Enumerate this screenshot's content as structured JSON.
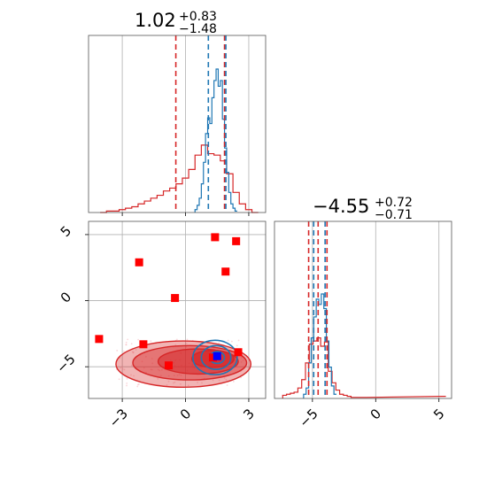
{
  "chart_data": [
    {
      "type": "histogram",
      "panel": "top-left marginal (parameter 1)",
      "title": {
        "value": "1.02",
        "upper": "+0.83",
        "lower": "−1.48"
      },
      "x_range": [
        -4.6,
        3.8
      ],
      "grid": true,
      "quantile_lines": {
        "red": [
          -0.46,
          1.85
        ],
        "blue": [
          1.02,
          1.85
        ]
      },
      "series": [
        {
          "color": "#d62728",
          "bins_x": [
            -3.9,
            -3.6,
            -3.3,
            -3.0,
            -2.7,
            -2.4,
            -2.1,
            -1.8,
            -1.5,
            -1.2,
            -0.9,
            -0.6,
            -0.3,
            0.0,
            0.3,
            0.6,
            0.9,
            1.2,
            1.5,
            1.8,
            2.1,
            2.4,
            2.7,
            3.0,
            3.3
          ],
          "heights": [
            0.0,
            0.01,
            0.01,
            0.02,
            0.03,
            0.04,
            0.06,
            0.08,
            0.1,
            0.12,
            0.15,
            0.17,
            0.2,
            0.24,
            0.3,
            0.4,
            0.47,
            0.41,
            0.4,
            0.36,
            0.27,
            0.14,
            0.06,
            0.02,
            0.0
          ]
        },
        {
          "color": "#1f77b4",
          "bins_x": [
            0.5,
            0.6,
            0.7,
            0.8,
            0.9,
            1.0,
            1.1,
            1.2,
            1.3,
            1.4,
            1.5,
            1.6,
            1.7,
            1.8,
            1.9,
            2.0,
            2.1,
            2.2,
            2.3,
            2.4
          ],
          "heights": [
            0.02,
            0.05,
            0.1,
            0.2,
            0.35,
            0.55,
            0.66,
            0.62,
            0.8,
            0.92,
            1.0,
            0.88,
            0.92,
            0.65,
            0.45,
            0.28,
            0.14,
            0.06,
            0.03,
            0.01
          ]
        }
      ]
    },
    {
      "type": "histogram",
      "panel": "bottom-right marginal (parameter 2)",
      "title": {
        "value": "−4.55",
        "upper": "+0.72",
        "lower": "−0.71"
      },
      "x_range": [
        -8.0,
        6.0
      ],
      "x_ticks": [
        "−5",
        "0",
        "5"
      ],
      "grid": true,
      "quantile_lines": {
        "red": [
          -5.3,
          -4.55,
          -3.85
        ],
        "blue": [
          -4.9,
          -4.0
        ]
      },
      "series": [
        {
          "color": "#d62728",
          "bins_x": [
            -7.2,
            -6.9,
            -6.6,
            -6.3,
            -6.0,
            -5.7,
            -5.4,
            -5.1,
            -4.8,
            -4.5,
            -4.2,
            -3.9,
            -3.6,
            -3.3,
            -3.0,
            -2.7,
            -2.4,
            -2.1,
            -1.8,
            -1.5,
            -1.2,
            -0.9,
            5.4
          ],
          "heights": [
            0.03,
            0.04,
            0.05,
            0.06,
            0.1,
            0.18,
            0.34,
            0.52,
            0.55,
            0.58,
            0.5,
            0.54,
            0.26,
            0.15,
            0.08,
            0.04,
            0.03,
            0.02,
            0.01,
            0.01,
            0.01,
            0.01,
            0.02
          ]
        },
        {
          "color": "#1f77b4",
          "bins_x": [
            -5.6,
            -5.4,
            -5.2,
            -5.0,
            -4.8,
            -4.6,
            -4.4,
            -4.2,
            -4.0,
            -3.8,
            -3.6,
            -3.4,
            -3.2
          ],
          "heights": [
            0.04,
            0.1,
            0.34,
            0.58,
            0.78,
            0.95,
            0.9,
            1.0,
            0.86,
            0.55,
            0.3,
            0.12,
            0.04
          ]
        }
      ]
    },
    {
      "type": "scatter",
      "panel": "bottom-left 2D (parameter 1 vs parameter 2)",
      "x_range": [
        -4.6,
        3.8
      ],
      "y_range": [
        -7.4,
        6.0
      ],
      "x_ticks": [
        "−3",
        "0",
        "3"
      ],
      "y_ticks": [
        "−5",
        "0",
        "5"
      ],
      "grid": true,
      "red_markers": [
        {
          "x": 1.4,
          "y": 4.8
        },
        {
          "x": 2.4,
          "y": 4.5
        },
        {
          "x": -2.2,
          "y": 2.9
        },
        {
          "x": 1.9,
          "y": 2.2
        },
        {
          "x": -0.5,
          "y": 0.2
        },
        {
          "x": -4.1,
          "y": -2.9
        },
        {
          "x": -2.0,
          "y": -3.3
        },
        {
          "x": 2.5,
          "y": -3.9
        },
        {
          "x": -0.8,
          "y": -4.9
        },
        {
          "x": 1.3,
          "y": -4.3
        }
      ],
      "blue_marker": {
        "x": 1.5,
        "y": -4.2
      },
      "red_contours": [
        {
          "cx": -0.1,
          "cy": -4.8,
          "rx": 3.2,
          "ry": 1.75,
          "opacity": 0.35
        },
        {
          "cx": 0.2,
          "cy": -4.7,
          "rx": 2.7,
          "ry": 1.3,
          "opacity": 0.45
        },
        {
          "cx": 0.6,
          "cy": -4.6,
          "rx": 1.9,
          "ry": 0.95,
          "opacity": 0.55
        },
        {
          "cx": 1.3,
          "cy": -4.4,
          "rx": 1.0,
          "ry": 0.65,
          "opacity": 0.7
        }
      ],
      "blue_contours": [
        {
          "cx": 1.4,
          "cy": -4.3,
          "rx": 1.05,
          "ry": 1.3
        },
        {
          "cx": 1.45,
          "cy": -4.3,
          "rx": 0.7,
          "ry": 0.9
        },
        {
          "cx": 1.5,
          "cy": -4.3,
          "rx": 0.35,
          "ry": 0.45
        }
      ]
    }
  ]
}
